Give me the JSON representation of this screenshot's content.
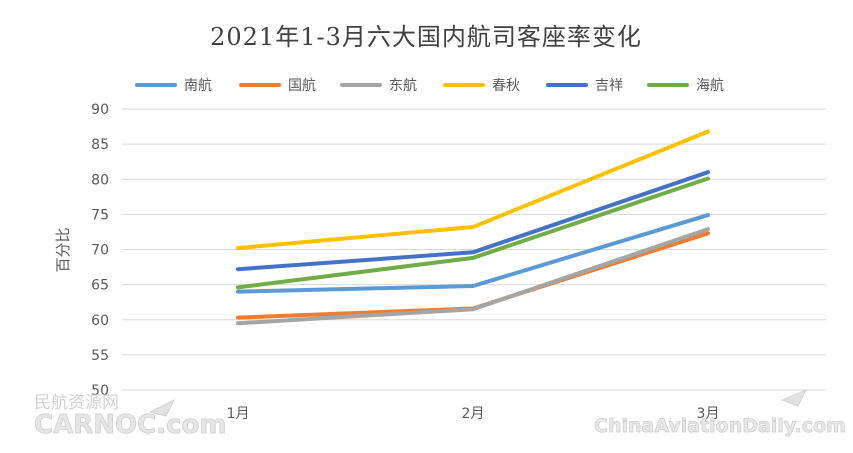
{
  "watermarks": {
    "left_cn": "民航资源网",
    "left_en": "CARNOC.com",
    "right_en": "ChinaAviationDaily.com"
  },
  "chart_data": {
    "type": "line",
    "title": "2021年1-3月六大国内航司客座率变化",
    "xlabel": "",
    "ylabel": "百分比",
    "categories": [
      "1月",
      "2月",
      "3月"
    ],
    "ylim": [
      50,
      90
    ],
    "yticks": [
      50,
      55,
      60,
      65,
      70,
      75,
      80,
      85,
      90
    ],
    "grid": true,
    "legend_position": "top",
    "series": [
      {
        "name": "南航",
        "color": "#5B9BD5",
        "values": [
          64.0,
          64.8,
          74.9
        ]
      },
      {
        "name": "国航",
        "color": "#ED7D31",
        "values": [
          60.3,
          61.6,
          72.3
        ]
      },
      {
        "name": "东航",
        "color": "#A5A5A5",
        "values": [
          59.5,
          61.5,
          72.9
        ]
      },
      {
        "name": "春秋",
        "color": "#FFC000",
        "values": [
          70.2,
          73.2,
          86.8
        ]
      },
      {
        "name": "吉祥",
        "color": "#4472C4",
        "values": [
          67.2,
          69.6,
          81.0
        ]
      },
      {
        "name": "海航",
        "color": "#70AD47",
        "values": [
          64.6,
          68.8,
          80.1
        ]
      }
    ]
  }
}
